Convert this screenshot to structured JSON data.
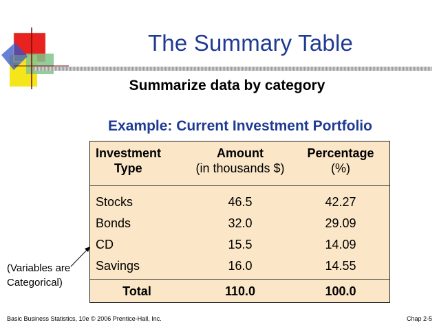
{
  "slide": {
    "title": "The Summary Table",
    "subtitle": "Summarize data by category",
    "example_heading": "Example: Current Investment Portfolio"
  },
  "table": {
    "headers": {
      "investment_line1": "Investment",
      "investment_line2": "Type",
      "amount_line1": "Amount",
      "amount_line2": "(in thousands $)",
      "percentage_line1": "Percentage",
      "percentage_line2": "(%)"
    },
    "rows": [
      {
        "type": "Stocks",
        "amount": "46.5",
        "percentage": "42.27"
      },
      {
        "type": "Bonds",
        "amount": "32.0",
        "percentage": "29.09"
      },
      {
        "type": "CD",
        "amount": "15.5",
        "percentage": "14.09"
      },
      {
        "type": "Savings",
        "amount": "16.0",
        "percentage": "14.55"
      }
    ],
    "total": {
      "label": "Total",
      "amount": "110.0",
      "percentage": "100.0"
    },
    "background_color": "#fbe7c7"
  },
  "note": {
    "line1": "(Variables are",
    "line2": "Categorical)"
  },
  "footer": {
    "left": "Basic Business Statistics, 10e © 2006 Prentice-Hall, Inc.",
    "right": "Chap 2-5"
  },
  "colors": {
    "title": "#1f3a93",
    "logo_red": "#e8231f",
    "logo_yellow": "#f5e61b",
    "logo_blue": "#3355cc",
    "logo_green": "#7fc48a"
  }
}
